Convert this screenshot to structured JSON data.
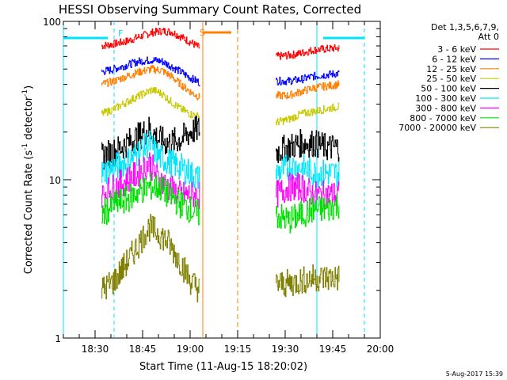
{
  "chart_data": {
    "type": "line",
    "title": "HESSI Observing Summary Count Rates, Corrected",
    "xlabel": "Start Time (11-Aug-15 18:20:02)",
    "ylabel_main": "Corrected Count Rate (s",
    "ylabel_sup1": "-1",
    "ylabel_mid": " detector",
    "ylabel_sup2": "-1",
    "ylabel_end": ")",
    "yscale": "log",
    "ylim": [
      1,
      100
    ],
    "xlim": [
      "18:20",
      "20:00"
    ],
    "x_ticks": [
      "18:30",
      "18:45",
      "19:00",
      "19:15",
      "19:30",
      "19:45",
      "20:00"
    ],
    "y_ticks": [
      "1",
      "10",
      "100"
    ],
    "footer": "5-Aug-2017 15:39",
    "legend": {
      "header1": "Det 1,3,5,6,7,9,",
      "header2": "Att 0",
      "position": "top-right"
    },
    "series": [
      {
        "name": "3 - 6 keV",
        "color": "#ff0000",
        "points": [
          [
            "18:32",
            70
          ],
          [
            "18:36",
            72
          ],
          [
            "18:40",
            75
          ],
          [
            "18:44",
            80
          ],
          [
            "18:48",
            85
          ],
          [
            "18:51",
            87
          ],
          [
            "18:54",
            86
          ],
          [
            "18:57",
            80
          ],
          [
            "19:00",
            74
          ],
          [
            "19:03",
            68
          ],
          [
            "19:27",
            60
          ],
          [
            "19:31",
            61
          ],
          [
            "19:35",
            63
          ],
          [
            "19:39",
            66
          ],
          [
            "19:43",
            67
          ],
          [
            "19:47",
            68
          ]
        ]
      },
      {
        "name": "6 - 12 keV",
        "color": "#0000ff",
        "points": [
          [
            "18:32",
            48
          ],
          [
            "18:36",
            50
          ],
          [
            "18:40",
            53
          ],
          [
            "18:44",
            56
          ],
          [
            "18:48",
            57
          ],
          [
            "18:51",
            56
          ],
          [
            "18:54",
            52
          ],
          [
            "18:57",
            48
          ],
          [
            "19:00",
            44
          ],
          [
            "19:03",
            41
          ],
          [
            "19:27",
            42
          ],
          [
            "19:31",
            42
          ],
          [
            "19:35",
            43
          ],
          [
            "19:39",
            45
          ],
          [
            "19:43",
            46
          ],
          [
            "19:47",
            47
          ]
        ]
      },
      {
        "name": "12 - 25 keV",
        "color": "#ff7f00",
        "points": [
          [
            "18:32",
            40
          ],
          [
            "18:36",
            42
          ],
          [
            "18:40",
            45
          ],
          [
            "18:44",
            48
          ],
          [
            "18:48",
            50
          ],
          [
            "18:51",
            49
          ],
          [
            "18:54",
            45
          ],
          [
            "18:57",
            40
          ],
          [
            "19:00",
            36
          ],
          [
            "19:03",
            33
          ],
          [
            "19:27",
            34
          ],
          [
            "19:31",
            34
          ],
          [
            "19:35",
            36
          ],
          [
            "19:39",
            38
          ],
          [
            "19:43",
            39
          ],
          [
            "19:47",
            40
          ]
        ]
      },
      {
        "name": "25 - 50 keV",
        "color": "#c8c800",
        "points": [
          [
            "18:32",
            26
          ],
          [
            "18:36",
            28
          ],
          [
            "18:40",
            31
          ],
          [
            "18:44",
            34
          ],
          [
            "18:48",
            37
          ],
          [
            "18:51",
            35
          ],
          [
            "18:54",
            31
          ],
          [
            "18:57",
            28
          ],
          [
            "19:00",
            26
          ],
          [
            "19:03",
            25
          ],
          [
            "19:27",
            23
          ],
          [
            "19:31",
            24
          ],
          [
            "19:35",
            26
          ],
          [
            "19:39",
            27
          ],
          [
            "19:43",
            28
          ],
          [
            "19:47",
            29
          ]
        ]
      },
      {
        "name": "50 - 100 keV",
        "color": "#000000",
        "points": [
          [
            "18:32",
            14
          ],
          [
            "18:36",
            15
          ],
          [
            "18:40",
            17
          ],
          [
            "18:44",
            19
          ],
          [
            "18:47",
            21
          ],
          [
            "18:50",
            18
          ],
          [
            "18:53",
            17
          ],
          [
            "18:57",
            18
          ],
          [
            "19:00",
            20
          ],
          [
            "19:03",
            21
          ],
          [
            "19:27",
            15
          ],
          [
            "19:31",
            16
          ],
          [
            "19:35",
            17
          ],
          [
            "19:39",
            17
          ],
          [
            "19:43",
            16
          ],
          [
            "19:47",
            16
          ]
        ]
      },
      {
        "name": "100 - 300 keV",
        "color": "#00e5ff",
        "points": [
          [
            "18:32",
            11
          ],
          [
            "18:36",
            12
          ],
          [
            "18:40",
            13
          ],
          [
            "18:44",
            15
          ],
          [
            "18:47",
            17
          ],
          [
            "18:50",
            14
          ],
          [
            "18:53",
            13
          ],
          [
            "18:57",
            12
          ],
          [
            "19:00",
            11
          ],
          [
            "19:03",
            10
          ],
          [
            "19:27",
            11
          ],
          [
            "19:31",
            12
          ],
          [
            "19:35",
            12
          ],
          [
            "19:39",
            11
          ],
          [
            "19:43",
            11
          ],
          [
            "19:47",
            11
          ]
        ]
      },
      {
        "name": "300 - 800 keV",
        "color": "#ff00ff",
        "points": [
          [
            "18:32",
            8
          ],
          [
            "18:36",
            9
          ],
          [
            "18:40",
            10
          ],
          [
            "18:44",
            11
          ],
          [
            "18:47",
            13
          ],
          [
            "18:50",
            10
          ],
          [
            "18:53",
            9
          ],
          [
            "18:57",
            8
          ],
          [
            "19:00",
            8
          ],
          [
            "19:03",
            8
          ],
          [
            "19:27",
            8
          ],
          [
            "19:31",
            9
          ],
          [
            "19:35",
            9
          ],
          [
            "19:39",
            8
          ],
          [
            "19:43",
            8
          ],
          [
            "19:47",
            8
          ]
        ]
      },
      {
        "name": "800 - 7000 keV",
        "color": "#00e000",
        "points": [
          [
            "18:32",
            6
          ],
          [
            "18:36",
            7
          ],
          [
            "18:40",
            7.5
          ],
          [
            "18:44",
            8.5
          ],
          [
            "18:47",
            9
          ],
          [
            "18:50",
            9
          ],
          [
            "18:53",
            8
          ],
          [
            "18:57",
            7
          ],
          [
            "19:00",
            6.5
          ],
          [
            "19:03",
            6
          ],
          [
            "19:27",
            6
          ],
          [
            "19:31",
            5.5
          ],
          [
            "19:35",
            6
          ],
          [
            "19:39",
            6.5
          ],
          [
            "19:43",
            6.5
          ],
          [
            "19:47",
            7
          ]
        ]
      },
      {
        "name": "7000 - 20000 keV",
        "color": "#808000",
        "points": [
          [
            "18:32",
            2
          ],
          [
            "18:36",
            2.3
          ],
          [
            "18:40",
            3
          ],
          [
            "18:44",
            4
          ],
          [
            "18:47",
            5
          ],
          [
            "18:50",
            4.6
          ],
          [
            "18:53",
            4
          ],
          [
            "18:57",
            3
          ],
          [
            "19:00",
            2.3
          ],
          [
            "19:03",
            2
          ],
          [
            "19:27",
            2.2
          ],
          [
            "19:31",
            2.2
          ],
          [
            "19:35",
            2.3
          ],
          [
            "19:39",
            2.4
          ],
          [
            "19:43",
            2.4
          ],
          [
            "19:47",
            2.4
          ]
        ]
      }
    ],
    "annotations": {
      "flag_F": "F",
      "flag_S": "S"
    },
    "markers": {
      "cyan_bar_left": [
        "18:20",
        "18:34"
      ],
      "cyan_bar_right": [
        "19:42",
        "19:55"
      ],
      "orange_bar": [
        "19:04",
        "19:13"
      ],
      "cyan_vlines_dashed": [
        "18:36",
        "19:55"
      ],
      "cyan_vlines_solid": [
        "18:20",
        "19:40"
      ],
      "orange_vline_solid": "19:04",
      "orange_vline_dashed": "19:15"
    }
  }
}
